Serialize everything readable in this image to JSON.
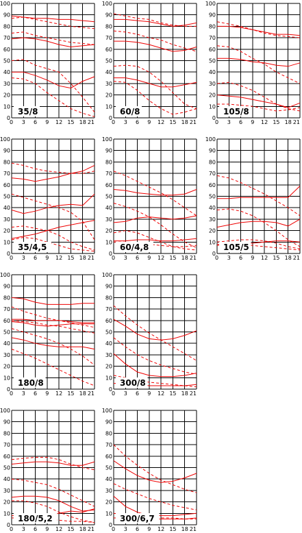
{
  "chart_data": [
    {
      "type": "line",
      "label": "35/8",
      "x": [
        0,
        3,
        6,
        9,
        12,
        15,
        18,
        21
      ],
      "ylim": [
        0,
        100
      ],
      "y_ticks": [
        0,
        10,
        20,
        30,
        40,
        50,
        60,
        70,
        80,
        90,
        100
      ],
      "series": [
        {
          "style": "solid",
          "values": [
            89,
            88,
            87,
            87,
            86,
            86,
            85,
            84
          ]
        },
        {
          "style": "dashed",
          "values": [
            87,
            88,
            86,
            84,
            82,
            80,
            79,
            78
          ]
        },
        {
          "style": "dashed",
          "values": [
            74,
            75,
            72,
            70,
            68,
            66,
            65,
            64
          ]
        },
        {
          "style": "solid",
          "values": [
            69,
            70,
            69,
            67,
            64,
            62,
            63,
            64
          ]
        },
        {
          "style": "dashed",
          "values": [
            50,
            51,
            46,
            43,
            40,
            30,
            18,
            5
          ]
        },
        {
          "style": "solid",
          "values": [
            40,
            40,
            37,
            33,
            28,
            26,
            32,
            36
          ]
        },
        {
          "style": "dashed",
          "values": [
            35,
            34,
            30,
            22,
            15,
            8,
            4,
            1
          ]
        }
      ]
    },
    {
      "type": "line",
      "label": "60/8",
      "x": [
        0,
        3,
        6,
        9,
        12,
        15,
        18,
        21
      ],
      "ylim": [
        0,
        100
      ],
      "y_ticks": [
        0,
        10,
        20,
        30,
        40,
        50,
        60,
        70,
        80,
        90,
        100
      ],
      "series": [
        {
          "style": "dashed",
          "values": [
            91,
            89,
            87,
            86,
            83,
            81,
            80,
            80
          ]
        },
        {
          "style": "solid",
          "values": [
            86,
            86,
            85,
            84,
            82,
            80,
            81,
            83
          ]
        },
        {
          "style": "dashed",
          "values": [
            76,
            75,
            73,
            70,
            68,
            64,
            61,
            58
          ]
        },
        {
          "style": "solid",
          "values": [
            67,
            67,
            66,
            64,
            61,
            58,
            59,
            62
          ]
        },
        {
          "style": "dashed",
          "values": [
            45,
            46,
            45,
            40,
            32,
            22,
            12,
            8
          ]
        },
        {
          "style": "solid",
          "values": [
            35,
            35,
            33,
            30,
            27,
            27,
            29,
            31
          ]
        },
        {
          "style": "dashed",
          "values": [
            32,
            31,
            24,
            15,
            8,
            3,
            5,
            8
          ]
        }
      ]
    },
    {
      "type": "line",
      "label": "105/8",
      "x": [
        0,
        3,
        6,
        9,
        12,
        15,
        18,
        21
      ],
      "ylim": [
        0,
        100
      ],
      "y_ticks": [
        0,
        10,
        20,
        30,
        40,
        50,
        60,
        70,
        80,
        90,
        100
      ],
      "series": [
        {
          "style": "dashed",
          "values": [
            84,
            82,
            80,
            77,
            74,
            72,
            71,
            70
          ]
        },
        {
          "style": "solid",
          "values": [
            80,
            80,
            79,
            77,
            75,
            73,
            73,
            72
          ]
        },
        {
          "style": "dashed",
          "values": [
            63,
            62,
            58,
            52,
            47,
            40,
            35,
            30
          ]
        },
        {
          "style": "solid",
          "values": [
            52,
            52,
            51,
            49,
            48,
            46,
            45,
            48
          ]
        },
        {
          "style": "dashed",
          "values": [
            30,
            31,
            28,
            24,
            18,
            12,
            8,
            6
          ]
        },
        {
          "style": "solid",
          "values": [
            20,
            19,
            18,
            16,
            14,
            12,
            9,
            13
          ]
        },
        {
          "style": "dashed",
          "values": [
            12,
            12,
            11,
            10,
            8,
            6,
            7,
            9
          ]
        }
      ]
    },
    {
      "type": "line",
      "label": "35/4,5",
      "x": [
        0,
        3,
        6,
        9,
        12,
        15,
        18,
        21
      ],
      "ylim": [
        0,
        100
      ],
      "y_ticks": [
        0,
        10,
        20,
        30,
        40,
        50,
        60,
        70,
        80,
        90,
        100
      ],
      "series": [
        {
          "style": "dashed",
          "values": [
            79,
            77,
            74,
            72,
            71,
            70,
            70,
            72
          ]
        },
        {
          "style": "solid",
          "values": [
            66,
            65,
            63,
            65,
            67,
            70,
            72,
            77
          ]
        },
        {
          "style": "dashed",
          "values": [
            52,
            49,
            46,
            43,
            40,
            36,
            28,
            12
          ]
        },
        {
          "style": "solid",
          "values": [
            38,
            35,
            37,
            40,
            42,
            43,
            42,
            52
          ]
        },
        {
          "style": "dashed",
          "values": [
            23,
            24,
            22,
            20,
            16,
            10,
            6,
            3
          ]
        },
        {
          "style": "solid",
          "values": [
            13,
            15,
            17,
            20,
            23,
            25,
            27,
            29
          ]
        },
        {
          "style": "dashed",
          "values": [
            12,
            14,
            13,
            10,
            7,
            4,
            3,
            2
          ]
        }
      ]
    },
    {
      "type": "line",
      "label": "60/4,8",
      "x": [
        0,
        3,
        6,
        9,
        12,
        15,
        18,
        21
      ],
      "ylim": [
        0,
        100
      ],
      "y_ticks": [
        0,
        10,
        20,
        30,
        40,
        50,
        60,
        70,
        80,
        90,
        100
      ],
      "series": [
        {
          "style": "dashed",
          "values": [
            72,
            68,
            63,
            58,
            53,
            47,
            40,
            33
          ]
        },
        {
          "style": "solid",
          "values": [
            56,
            55,
            53,
            52,
            51,
            51,
            52,
            56
          ]
        },
        {
          "style": "dashed",
          "values": [
            44,
            41,
            37,
            32,
            25,
            17,
            10,
            5
          ]
        },
        {
          "style": "solid",
          "values": [
            27,
            28,
            31,
            32,
            31,
            30,
            31,
            33
          ]
        },
        {
          "style": "dashed",
          "values": [
            18,
            20,
            18,
            14,
            10,
            6,
            4,
            3
          ]
        },
        {
          "style": "solid",
          "values": [
            11,
            11,
            12,
            12,
            11,
            11,
            12,
            13
          ]
        },
        {
          "style": "dashed",
          "values": [
            10,
            10,
            9,
            8,
            7,
            6,
            6,
            7
          ]
        }
      ]
    },
    {
      "type": "line",
      "label": "105/5",
      "x": [
        0,
        3,
        6,
        9,
        12,
        15,
        18,
        21
      ],
      "ylim": [
        0,
        100
      ],
      "y_ticks": [
        0,
        10,
        20,
        30,
        40,
        50,
        60,
        70,
        80,
        90,
        100
      ],
      "series": [
        {
          "style": "dashed",
          "values": [
            68,
            66,
            62,
            57,
            52,
            46,
            40,
            33
          ]
        },
        {
          "style": "solid",
          "values": [
            48,
            48,
            49,
            49,
            49,
            49,
            49,
            59
          ]
        },
        {
          "style": "dashed",
          "values": [
            38,
            39,
            37,
            33,
            27,
            20,
            12,
            6
          ]
        },
        {
          "style": "solid",
          "values": [
            23,
            25,
            27,
            28,
            28,
            27,
            24,
            30
          ]
        },
        {
          "style": "dashed",
          "values": [
            10,
            11,
            12,
            12,
            11,
            9,
            6,
            4
          ]
        },
        {
          "style": "solid",
          "values": [
            8,
            8,
            8,
            9,
            10,
            11,
            11,
            10
          ]
        },
        {
          "style": "dashed",
          "values": [
            7,
            8,
            8,
            7,
            6,
            5,
            4,
            3
          ]
        }
      ]
    },
    {
      "type": "line",
      "label": "180/8",
      "x": [
        0,
        3,
        6,
        9,
        12,
        15,
        18,
        21
      ],
      "ylim": [
        0,
        100
      ],
      "y_ticks": [
        0,
        10,
        20,
        30,
        40,
        50,
        60,
        70,
        80,
        90,
        100
      ],
      "series": [
        {
          "style": "solid",
          "values": [
            80,
            79,
            76,
            74,
            74,
            74,
            75,
            75
          ]
        },
        {
          "style": "dashed",
          "values": [
            72,
            68,
            65,
            62,
            60,
            58,
            56,
            54
          ]
        },
        {
          "style": "solid",
          "values": [
            61,
            61,
            60,
            60,
            60,
            59,
            58,
            58
          ]
        },
        {
          "style": "dashed",
          "values": [
            60,
            59,
            58,
            56,
            55,
            53,
            51,
            49
          ]
        },
        {
          "style": "solid",
          "values": [
            59,
            58,
            56,
            55,
            56,
            57,
            57,
            57
          ]
        },
        {
          "style": "dashed",
          "values": [
            53,
            50,
            47,
            44,
            40,
            35,
            29,
            21
          ]
        },
        {
          "style": "solid",
          "values": [
            45,
            43,
            40,
            38,
            37,
            37,
            37,
            35
          ]
        },
        {
          "style": "dashed",
          "values": [
            35,
            31,
            27,
            22,
            17,
            12,
            7,
            3
          ]
        }
      ]
    },
    {
      "type": "line",
      "label": "300/8",
      "x": [
        0,
        3,
        6,
        9,
        12,
        15,
        18,
        21
      ],
      "ylim": [
        0,
        100
      ],
      "y_ticks": [
        0,
        10,
        20,
        30,
        40,
        50,
        60,
        70,
        80,
        90,
        100
      ],
      "series": [
        {
          "style": "dashed",
          "values": [
            73,
            64,
            56,
            49,
            43,
            37,
            31,
            25
          ]
        },
        {
          "style": "solid",
          "values": [
            61,
            55,
            48,
            44,
            43,
            44,
            47,
            51
          ]
        },
        {
          "style": "dashed",
          "values": [
            45,
            37,
            30,
            25,
            21,
            18,
            15,
            13
          ]
        },
        {
          "style": "solid",
          "values": [
            31,
            22,
            15,
            12,
            11,
            11,
            12,
            14
          ]
        },
        {
          "style": "dashed",
          "values": [
            12,
            10,
            8,
            6,
            5,
            4,
            3,
            2
          ]
        },
        {
          "style": "solid",
          "values": [
            5,
            5,
            4,
            3,
            3,
            3,
            3,
            4
          ]
        }
      ]
    },
    {
      "type": "line",
      "label": "180/5,2",
      "x": [
        0,
        3,
        6,
        9,
        12,
        15,
        18,
        21
      ],
      "ylim": [
        0,
        100
      ],
      "y_ticks": [
        0,
        10,
        20,
        30,
        40,
        50,
        60,
        70,
        80,
        90,
        100
      ],
      "series": [
        {
          "style": "dashed",
          "values": [
            57,
            58,
            59,
            59,
            57,
            53,
            50,
            48
          ]
        },
        {
          "style": "solid",
          "values": [
            53,
            54,
            55,
            55,
            54,
            52,
            52,
            55
          ]
        },
        {
          "style": "dashed",
          "values": [
            40,
            39,
            37,
            35,
            31,
            26,
            21,
            16
          ]
        },
        {
          "style": "solid",
          "values": [
            24,
            25,
            25,
            24,
            21,
            16,
            12,
            13
          ]
        },
        {
          "style": "dashed",
          "values": [
            21,
            21,
            19,
            16,
            11,
            7,
            4,
            2
          ]
        },
        {
          "style": "solid",
          "values": [
            8,
            8,
            8,
            8,
            10,
            12,
            11,
            14
          ]
        },
        {
          "style": "dashed",
          "values": [
            6,
            6,
            6,
            5,
            4,
            3,
            3,
            2
          ]
        }
      ]
    },
    {
      "type": "line",
      "label": "300/6,7",
      "x": [
        0,
        3,
        6,
        9,
        12,
        15,
        18,
        21
      ],
      "ylim": [
        0,
        100
      ],
      "y_ticks": [
        0,
        10,
        20,
        30,
        40,
        50,
        60,
        70,
        80,
        90,
        100
      ],
      "series": [
        {
          "style": "dashed",
          "values": [
            70,
            60,
            52,
            45,
            39,
            35,
            31,
            28
          ]
        },
        {
          "style": "solid",
          "values": [
            56,
            49,
            43,
            39,
            37,
            38,
            41,
            45
          ]
        },
        {
          "style": "dashed",
          "values": [
            36,
            31,
            27,
            23,
            20,
            17,
            15,
            13
          ]
        },
        {
          "style": "solid",
          "values": [
            25,
            16,
            11,
            8,
            8,
            8,
            9,
            10
          ]
        },
        {
          "style": "dashed",
          "values": [
            10,
            9,
            8,
            7,
            6,
            6,
            5,
            5
          ]
        },
        {
          "style": "solid",
          "values": [
            6,
            6,
            5,
            5,
            5,
            5,
            5,
            6
          ]
        }
      ]
    }
  ],
  "colors": {
    "series": "#ee0000",
    "grid": "#000000",
    "background": "#ffffff"
  }
}
